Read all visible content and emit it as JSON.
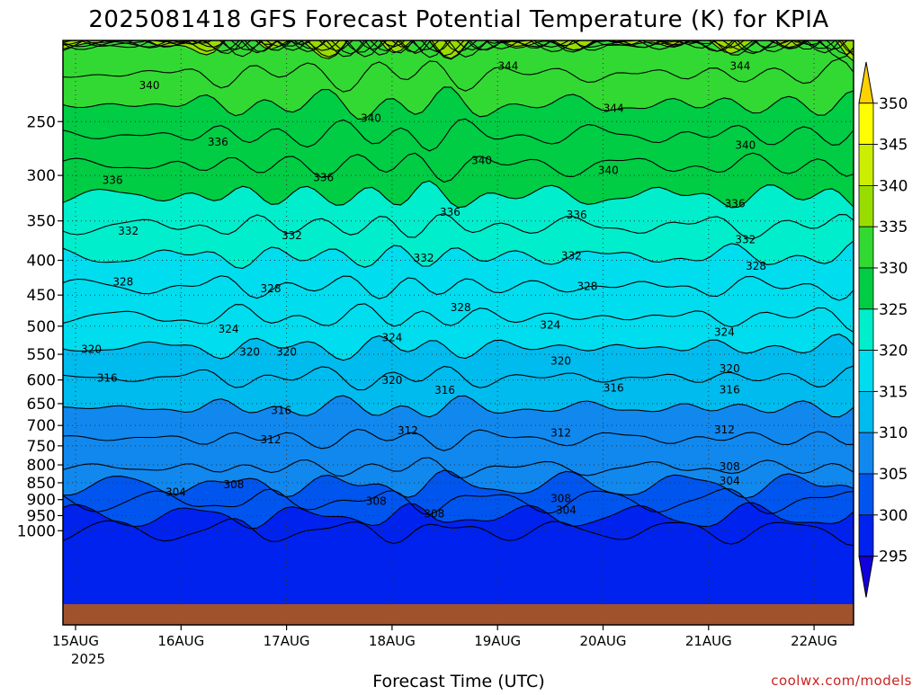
{
  "chart_data": {
    "type": "contour",
    "title": "2025081418 GFS Forecast Potential Temperature (K) for KPIA",
    "xlabel": "Forecast Time (UTC)",
    "ylabel": "",
    "x_ticks": [
      "15AUG",
      "16AUG",
      "17AUG",
      "18AUG",
      "19AUG",
      "20AUG",
      "21AUG",
      "22AUG"
    ],
    "x_tick_sublabel": "2025",
    "y_ticks": [
      250,
      300,
      350,
      400,
      450,
      500,
      550,
      600,
      650,
      700,
      750,
      800,
      850,
      900,
      950,
      1000
    ],
    "y_axis": "pressure (hPa), inverted",
    "contour_interval": 4,
    "colorbar": {
      "labels": [
        350,
        345,
        340,
        335,
        330,
        325,
        320,
        315,
        310,
        305,
        300,
        295
      ],
      "colors": [
        "#fed200",
        "#fefe00",
        "#ccee00",
        "#99dd00",
        "#33d933",
        "#00cc44",
        "#00eecc",
        "#00ddee",
        "#00bbee",
        "#1188ee",
        "#0055ee",
        "#0022ee",
        "#1100dd"
      ]
    },
    "contour_labels": [
      {
        "v": "344",
        "t": 4.1,
        "p": 207
      },
      {
        "v": "344",
        "t": 5.1,
        "p": 239
      },
      {
        "v": "344",
        "t": 6.3,
        "p": 207
      },
      {
        "v": "340",
        "t": 0.7,
        "p": 221
      },
      {
        "v": "340",
        "t": 2.8,
        "p": 247
      },
      {
        "v": "340",
        "t": 3.85,
        "p": 285
      },
      {
        "v": "340",
        "t": 5.05,
        "p": 295
      },
      {
        "v": "340",
        "t": 6.35,
        "p": 271
      },
      {
        "v": "336",
        "t": 1.35,
        "p": 268
      },
      {
        "v": "336",
        "t": 0.35,
        "p": 305
      },
      {
        "v": "336",
        "t": 2.35,
        "p": 302
      },
      {
        "v": "336",
        "t": 3.55,
        "p": 340
      },
      {
        "v": "336",
        "t": 4.75,
        "p": 343
      },
      {
        "v": "336",
        "t": 6.25,
        "p": 330
      },
      {
        "v": "332",
        "t": 0.5,
        "p": 362
      },
      {
        "v": "332",
        "t": 2.05,
        "p": 368
      },
      {
        "v": "332",
        "t": 3.3,
        "p": 397
      },
      {
        "v": "332",
        "t": 4.7,
        "p": 394
      },
      {
        "v": "332",
        "t": 6.35,
        "p": 373
      },
      {
        "v": "328",
        "t": 0.45,
        "p": 430
      },
      {
        "v": "328",
        "t": 1.85,
        "p": 440
      },
      {
        "v": "328",
        "t": 6.45,
        "p": 408
      },
      {
        "v": "328",
        "t": 3.65,
        "p": 469
      },
      {
        "v": "328",
        "t": 4.85,
        "p": 437
      },
      {
        "v": "324",
        "t": 1.45,
        "p": 505
      },
      {
        "v": "324",
        "t": 3.0,
        "p": 520
      },
      {
        "v": "324",
        "t": 4.5,
        "p": 498
      },
      {
        "v": "324",
        "t": 6.15,
        "p": 510
      },
      {
        "v": "320",
        "t": 0.15,
        "p": 541
      },
      {
        "v": "320",
        "t": 1.65,
        "p": 546
      },
      {
        "v": "320",
        "t": 2.0,
        "p": 546
      },
      {
        "v": "320",
        "t": 3.0,
        "p": 601
      },
      {
        "v": "320",
        "t": 4.6,
        "p": 563
      },
      {
        "v": "320",
        "t": 6.2,
        "p": 577
      },
      {
        "v": "316",
        "t": 0.3,
        "p": 596
      },
      {
        "v": "316",
        "t": 1.95,
        "p": 665
      },
      {
        "v": "316",
        "t": 3.5,
        "p": 621
      },
      {
        "v": "316",
        "t": 5.1,
        "p": 616
      },
      {
        "v": "316",
        "t": 6.2,
        "p": 620
      },
      {
        "v": "312",
        "t": 1.85,
        "p": 735
      },
      {
        "v": "312",
        "t": 3.15,
        "p": 712
      },
      {
        "v": "312",
        "t": 4.6,
        "p": 718
      },
      {
        "v": "312",
        "t": 6.15,
        "p": 710
      },
      {
        "v": "308",
        "t": 1.5,
        "p": 855
      },
      {
        "v": "308",
        "t": 2.85,
        "p": 905
      },
      {
        "v": "308",
        "t": 3.4,
        "p": 945
      },
      {
        "v": "308",
        "t": 4.6,
        "p": 897
      },
      {
        "v": "308",
        "t": 6.2,
        "p": 805
      },
      {
        "v": "304",
        "t": 0.95,
        "p": 878
      },
      {
        "v": "304",
        "t": 4.65,
        "p": 933
      },
      {
        "v": "304",
        "t": 6.2,
        "p": 845
      }
    ]
  },
  "credit": "coolwx.com/models"
}
